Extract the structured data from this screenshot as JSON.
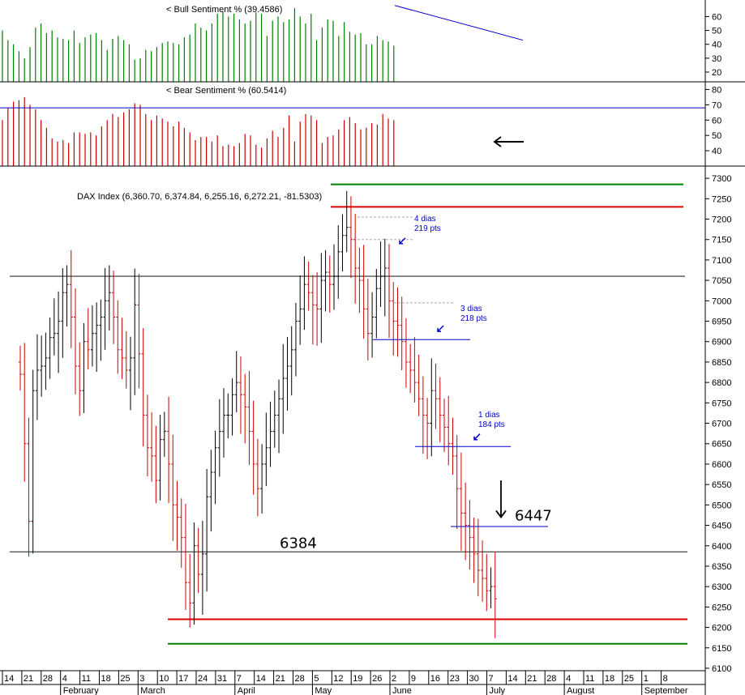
{
  "chart_data": [
    {
      "type": "bar",
      "title": "< Bull Sentiment % (39.4586)",
      "color": "#008000",
      "ylim": [
        13,
        69
      ],
      "yticks": [
        20,
        30,
        40,
        50,
        60
      ],
      "grid": false,
      "values": [
        50,
        43,
        40,
        35,
        30,
        38,
        52,
        55,
        48,
        50,
        45,
        44,
        43,
        50,
        41,
        45,
        47,
        48,
        43,
        36,
        44,
        46,
        43,
        40,
        29,
        30,
        36,
        35,
        38,
        41,
        42,
        41,
        40,
        45,
        47,
        55,
        52,
        50,
        55,
        62,
        64,
        60,
        62,
        58,
        55,
        57,
        63,
        62,
        46,
        57,
        60,
        56,
        58,
        66,
        60,
        55,
        62,
        43,
        52,
        58,
        57,
        46,
        56,
        49,
        47,
        48,
        40,
        40,
        46,
        43,
        42,
        39
      ],
      "trend_line": {
        "x": [
          487,
          645
        ],
        "y": [
          68,
          43
        ]
      }
    },
    {
      "type": "bar",
      "title": "< Bear Sentiment % (60.5414)",
      "color": "#cc0000",
      "ylim": [
        30,
        85
      ],
      "yticks": [
        40,
        50,
        60,
        70,
        80
      ],
      "grid": false,
      "reference_line": 68,
      "values": [
        60,
        68,
        72,
        73,
        75,
        70,
        67,
        60,
        55,
        48,
        46,
        47,
        45,
        52,
        52,
        51,
        52,
        50,
        56,
        60,
        64,
        62,
        65,
        67,
        71,
        70,
        64,
        60,
        63,
        61,
        59,
        56,
        59,
        55,
        52,
        47,
        49,
        49,
        46,
        50,
        43,
        44,
        43,
        45,
        51,
        50,
        44,
        42,
        48,
        53,
        49,
        55,
        63,
        46,
        59,
        64,
        63,
        60,
        45,
        49,
        50,
        54,
        60,
        62,
        58,
        54,
        55,
        58,
        57,
        64,
        61,
        60
      ]
    },
    {
      "type": "ohlc",
      "title": "DAX Index (6,360.70, 6,374.84, 6,255.16, 6,272.21, -81.5303)",
      "ylim": [
        6090,
        7330
      ],
      "yticks": [
        6100,
        6150,
        6200,
        6250,
        6300,
        6350,
        6400,
        6450,
        6500,
        6550,
        6600,
        6650,
        6700,
        6750,
        6800,
        6850,
        6900,
        6950,
        7000,
        7050,
        7100,
        7150,
        7200,
        7250,
        7300
      ],
      "grid": false,
      "closes": [
        6820,
        6650,
        6460,
        6780,
        6830,
        6840,
        6860,
        6910,
        6920,
        6950,
        7020,
        7040,
        6960,
        6840,
        6780,
        6900,
        6880,
        6920,
        6940,
        6960,
        7000,
        7020,
        6960,
        6880,
        6860,
        6830,
        6860,
        6990,
        6870,
        6720,
        6640,
        6620,
        6560,
        6660,
        6680,
        6600,
        6500,
        6470,
        6420,
        6310,
        6260,
        6400,
        6330,
        6380,
        6520,
        6580,
        6640,
        6680,
        6720,
        6720,
        6770,
        6800,
        6770,
        6740,
        6680,
        6600,
        6540,
        6600,
        6640,
        6680,
        6720,
        6760,
        6810,
        6840,
        6880,
        6950,
        6980,
        7040,
        7020,
        6990,
        6980,
        7050,
        7070,
        7040,
        7060,
        7120,
        7160,
        7180,
        7150,
        7080,
        7050,
        6980,
        6920,
        6960,
        7030,
        7060,
        7080,
        7000,
        6950,
        6940,
        6900,
        6850,
        6830,
        6800,
        6760,
        6720,
        6700,
        6780,
        6760,
        6720,
        6690,
        6650,
        6620,
        6540,
        6480,
        6450,
        6420,
        6380,
        6340,
        6320,
        6290,
        6300,
        6270
      ],
      "levels": [
        {
          "value": 7285,
          "color": "#008000"
        },
        {
          "value": 7230,
          "color": "#dd0000"
        },
        {
          "value": 7060,
          "color": "#555555"
        },
        {
          "value": 6385,
          "color": "#555555"
        },
        {
          "value": 6220,
          "color": "#dd0000"
        },
        {
          "value": 6160,
          "color": "#008000"
        }
      ],
      "annotations": [
        {
          "label": "4 dias",
          "sub": "219 pts"
        },
        {
          "label": "3 dias",
          "sub": "218 pts"
        },
        {
          "label": "1 dias",
          "sub": "184 pts"
        },
        {
          "label": "6384",
          "handwritten": true
        },
        {
          "label": "6447",
          "handwritten": true
        }
      ],
      "support_levels": [
        6905,
        6643,
        6447
      ],
      "x_ticks": [
        "14",
        "21",
        "28",
        "4",
        "11",
        "18",
        "25",
        "3",
        "10",
        "17",
        "24",
        "31",
        "7",
        "14",
        "21",
        "28",
        "5",
        "12",
        "19",
        "26",
        "2",
        "9",
        "16",
        "23",
        "30",
        "7",
        "14",
        "21",
        "28",
        "4",
        "11",
        "18",
        "25",
        "1",
        "8"
      ],
      "month_labels": [
        "February",
        "March",
        "April",
        "May",
        "June",
        "July",
        "August",
        "September"
      ]
    }
  ]
}
